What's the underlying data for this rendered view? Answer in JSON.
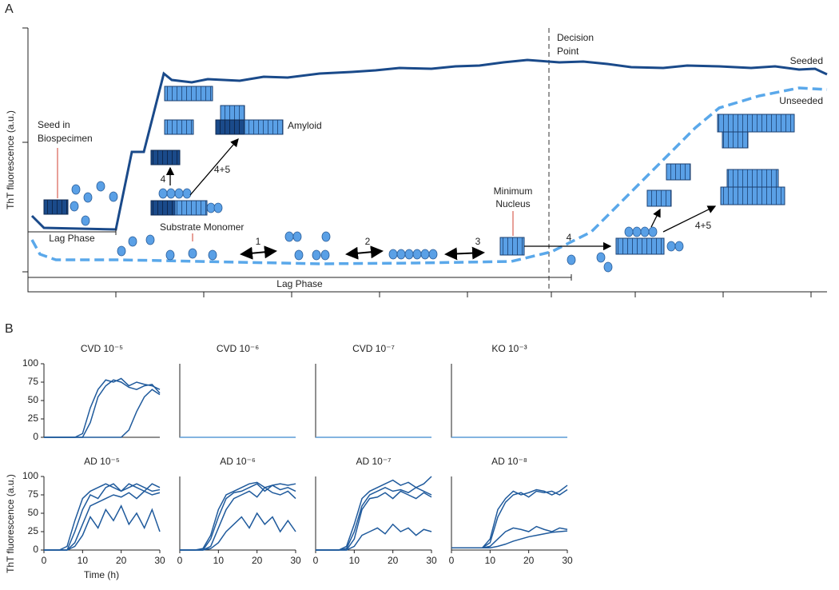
{
  "panel_a": {
    "label": "A",
    "y_label": "ThT fluorescence (a.u.)",
    "seeded": "Seeded",
    "unseeded": "Unseeded",
    "decision_point": [
      "Decision",
      "Point"
    ],
    "seed": [
      "Seed in",
      "Biospecimen"
    ],
    "amyloid": "Amyloid",
    "substrate_monomer": "Substrate Monomer",
    "minimum_nucleus": [
      "Minimum",
      "Nucleus"
    ],
    "lag_phase_seeded": "Lag Phase",
    "lag_phase_unseeded": "Lag Phase",
    "steps": [
      "1",
      "2",
      "3",
      "4",
      "4",
      "4+5",
      "4+5"
    ]
  },
  "panel_b": {
    "label": "B",
    "y_label": "ThT fluorescence (a.u.)",
    "x_label": "Time (h)"
  },
  "chart_data": [
    {
      "type": "line",
      "title": "CVD 10⁻⁵",
      "ylim": [
        0,
        100
      ],
      "yticks": [
        0,
        25,
        50,
        75,
        100
      ],
      "xlim": [
        0,
        30
      ],
      "x": [
        0,
        2,
        4,
        6,
        8,
        10,
        12,
        14,
        16,
        18,
        20,
        22,
        24,
        26,
        28,
        30
      ],
      "series": [
        {
          "color": "#1f5a9c",
          "values": [
            0,
            0,
            0,
            0,
            0,
            5,
            40,
            65,
            78,
            75,
            80,
            70,
            75,
            72,
            70,
            65
          ]
        },
        {
          "color": "#1f5a9c",
          "values": [
            0,
            0,
            0,
            0,
            0,
            0,
            20,
            55,
            70,
            78,
            75,
            68,
            65,
            70,
            72,
            60
          ]
        },
        {
          "color": "#1f5a9c",
          "values": [
            0,
            0,
            0,
            0,
            0,
            0,
            0,
            0,
            0,
            0,
            0,
            10,
            35,
            55,
            65,
            58
          ]
        }
      ]
    },
    {
      "type": "line",
      "title": "CVD 10⁻⁶",
      "ylim": [
        0,
        100
      ],
      "xlim": [
        0,
        30
      ],
      "x": [
        0,
        30
      ],
      "series": [
        {
          "color": "#5b9bd5",
          "values": [
            0,
            0
          ]
        }
      ]
    },
    {
      "type": "line",
      "title": "CVD 10⁻⁷",
      "ylim": [
        0,
        100
      ],
      "xlim": [
        0,
        30
      ],
      "x": [
        0,
        30
      ],
      "series": [
        {
          "color": "#5b9bd5",
          "values": [
            0,
            0
          ]
        }
      ]
    },
    {
      "type": "line",
      "title": "KO 10⁻³",
      "ylim": [
        0,
        100
      ],
      "xlim": [
        0,
        30
      ],
      "x": [
        0,
        30
      ],
      "series": [
        {
          "color": "#5b9bd5",
          "values": [
            0,
            0
          ]
        }
      ]
    },
    {
      "type": "line",
      "title": "AD 10⁻⁵",
      "ylim": [
        0,
        100
      ],
      "yticks": [
        0,
        25,
        50,
        75,
        100
      ],
      "xlim": [
        0,
        30
      ],
      "xticks": [
        0,
        10,
        20,
        30
      ],
      "x": [
        0,
        2,
        4,
        6,
        8,
        10,
        12,
        14,
        16,
        18,
        20,
        22,
        24,
        26,
        28,
        30
      ],
      "series": [
        {
          "color": "#1f5a9c",
          "values": [
            0,
            0,
            0,
            5,
            40,
            70,
            80,
            85,
            90,
            85,
            80,
            90,
            85,
            80,
            90,
            85
          ]
        },
        {
          "color": "#1f5a9c",
          "values": [
            0,
            0,
            0,
            0,
            25,
            55,
            75,
            70,
            85,
            90,
            80,
            85,
            90,
            85,
            80,
            82
          ]
        },
        {
          "color": "#1f5a9c",
          "values": [
            0,
            0,
            0,
            0,
            10,
            35,
            60,
            65,
            70,
            75,
            72,
            78,
            70,
            80,
            75,
            78
          ]
        },
        {
          "color": "#1f5a9c",
          "values": [
            0,
            0,
            0,
            0,
            5,
            20,
            45,
            30,
            55,
            40,
            60,
            35,
            50,
            30,
            55,
            25
          ]
        }
      ]
    },
    {
      "type": "line",
      "title": "AD 10⁻⁶",
      "ylim": [
        0,
        100
      ],
      "xlim": [
        0,
        30
      ],
      "xticks": [
        0,
        10,
        20,
        30
      ],
      "x": [
        0,
        2,
        4,
        6,
        8,
        10,
        12,
        14,
        16,
        18,
        20,
        22,
        24,
        26,
        28,
        30
      ],
      "series": [
        {
          "color": "#1f5a9c",
          "values": [
            0,
            0,
            0,
            2,
            20,
            55,
            75,
            80,
            85,
            90,
            92,
            85,
            88,
            90,
            88,
            90
          ]
        },
        {
          "color": "#1f5a9c",
          "values": [
            0,
            0,
            0,
            0,
            15,
            45,
            70,
            78,
            80,
            85,
            90,
            80,
            88,
            82,
            85,
            80
          ]
        },
        {
          "color": "#1f5a9c",
          "values": [
            0,
            0,
            0,
            0,
            5,
            30,
            55,
            70,
            75,
            80,
            72,
            85,
            78,
            75,
            80,
            70
          ]
        },
        {
          "color": "#1f5a9c",
          "values": [
            0,
            0,
            0,
            0,
            2,
            10,
            25,
            35,
            45,
            30,
            50,
            35,
            45,
            25,
            40,
            25
          ]
        }
      ]
    },
    {
      "type": "line",
      "title": "AD 10⁻⁷",
      "ylim": [
        0,
        100
      ],
      "xlim": [
        0,
        30
      ],
      "xticks": [
        0,
        10,
        20,
        30
      ],
      "x": [
        0,
        2,
        4,
        6,
        8,
        10,
        12,
        14,
        16,
        18,
        20,
        22,
        24,
        26,
        28,
        30
      ],
      "series": [
        {
          "color": "#1f5a9c",
          "values": [
            0,
            0,
            0,
            0,
            5,
            35,
            70,
            80,
            85,
            90,
            95,
            88,
            92,
            85,
            90,
            100
          ]
        },
        {
          "color": "#1f5a9c",
          "values": [
            0,
            0,
            0,
            0,
            2,
            25,
            60,
            75,
            80,
            85,
            80,
            82,
            78,
            85,
            80,
            75
          ]
        },
        {
          "color": "#1f5a9c",
          "values": [
            0,
            0,
            0,
            0,
            0,
            15,
            55,
            70,
            72,
            78,
            70,
            80,
            75,
            70,
            78,
            72
          ]
        },
        {
          "color": "#1f5a9c",
          "values": [
            0,
            0,
            0,
            0,
            0,
            5,
            20,
            25,
            30,
            22,
            35,
            25,
            30,
            20,
            28,
            25
          ]
        }
      ]
    },
    {
      "type": "line",
      "title": "AD 10⁻⁸",
      "ylim": [
        0,
        100
      ],
      "xlim": [
        0,
        30
      ],
      "xticks": [
        0,
        10,
        20,
        30
      ],
      "x": [
        0,
        2,
        4,
        6,
        8,
        10,
        12,
        14,
        16,
        18,
        20,
        22,
        24,
        26,
        28,
        30
      ],
      "series": [
        {
          "color": "#1f5a9c",
          "values": [
            3,
            3,
            3,
            3,
            3,
            15,
            55,
            70,
            80,
            75,
            78,
            82,
            80,
            75,
            80,
            88
          ]
        },
        {
          "color": "#1f5a9c",
          "values": [
            3,
            3,
            3,
            3,
            3,
            10,
            45,
            65,
            75,
            78,
            72,
            80,
            78,
            80,
            75,
            82
          ]
        },
        {
          "color": "#1f5a9c",
          "values": [
            3,
            3,
            3,
            3,
            3,
            5,
            15,
            25,
            30,
            28,
            25,
            32,
            28,
            25,
            30,
            28
          ]
        },
        {
          "color": "#1f5a9c",
          "values": [
            3,
            3,
            3,
            3,
            3,
            3,
            5,
            8,
            12,
            15,
            18,
            20,
            22,
            24,
            25,
            26
          ]
        }
      ]
    }
  ]
}
